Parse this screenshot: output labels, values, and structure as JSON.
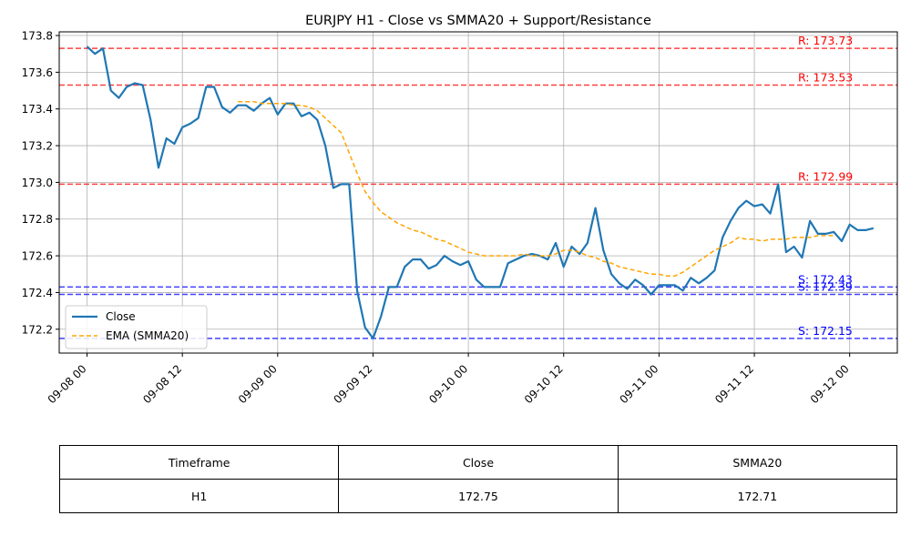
{
  "chart_data": {
    "type": "line",
    "title": "EURJPY H1 - Close vs SMMA20 + Support/Resistance",
    "xlabel": "",
    "ylabel": "",
    "ylim": [
      172.07,
      173.82
    ],
    "xlim": [
      "2025-09-07 20:30",
      "2025-09-12 06:00"
    ],
    "grid": true,
    "legend_location": "lower-left",
    "x_tick_labels": [
      "09-08 00",
      "09-08 12",
      "09-09 00",
      "09-09 12",
      "09-10 00",
      "09-10 12",
      "09-11 00",
      "09-11 12",
      "09-12 00"
    ],
    "y_tick_labels": [
      "172.2",
      "172.4",
      "172.6",
      "172.8",
      "173.0",
      "173.2",
      "173.4",
      "173.6",
      "173.8"
    ],
    "series": [
      {
        "name": "Close",
        "color": "#1f77b4",
        "style": "solid",
        "start": "2025-09-08 00:00",
        "step_hours": 1,
        "values": [
          173.74,
          173.7,
          173.73,
          173.5,
          173.46,
          173.52,
          173.54,
          173.53,
          173.34,
          173.08,
          173.24,
          173.21,
          173.3,
          173.32,
          173.35,
          173.52,
          173.52,
          173.41,
          173.38,
          173.42,
          173.42,
          173.39,
          173.43,
          173.46,
          173.37,
          173.43,
          173.43,
          173.36,
          173.38,
          173.34,
          173.2,
          172.97,
          172.99,
          172.99,
          172.41,
          172.21,
          172.15,
          172.27,
          172.43,
          172.43,
          172.54,
          172.58,
          172.58,
          172.53,
          172.55,
          172.6,
          172.57,
          172.55,
          172.57,
          172.47,
          172.43,
          172.43,
          172.43,
          172.56,
          172.58,
          172.6,
          172.61,
          172.6,
          172.58,
          172.67,
          172.54,
          172.65,
          172.61,
          172.67,
          172.86,
          172.63,
          172.5,
          172.45,
          172.42,
          172.47,
          172.44,
          172.39,
          172.44,
          172.44,
          172.44,
          172.41,
          172.48,
          172.45,
          172.48,
          172.52,
          172.7,
          172.79,
          172.86,
          172.9,
          172.87,
          172.88,
          172.83,
          172.99,
          172.62,
          172.65,
          172.59,
          172.79,
          172.72,
          172.72,
          172.73,
          172.68,
          172.77,
          172.74,
          172.74,
          172.75
        ]
      },
      {
        "name": "EMA (SMMA20)",
        "color": "#ffa500",
        "style": "dashed",
        "start": "2025-09-08 19:00",
        "step_hours": 1,
        "values": [
          173.44,
          173.44,
          173.44,
          173.43,
          173.43,
          173.43,
          173.43,
          173.42,
          173.42,
          173.41,
          173.39,
          173.35,
          173.31,
          173.27,
          173.16,
          173.05,
          172.95,
          172.89,
          172.84,
          172.81,
          172.78,
          172.76,
          172.74,
          172.73,
          172.71,
          172.69,
          172.68,
          172.66,
          172.64,
          172.62,
          172.61,
          172.6,
          172.6,
          172.6,
          172.6,
          172.6,
          172.61,
          172.6,
          172.6,
          172.6,
          172.61,
          172.63,
          172.63,
          172.62,
          172.6,
          172.59,
          172.57,
          172.56,
          172.54,
          172.53,
          172.52,
          172.51,
          172.5,
          172.5,
          172.49,
          172.49,
          172.51,
          172.54,
          172.57,
          172.6,
          172.63,
          172.65,
          172.67,
          172.7,
          172.69,
          172.69,
          172.68,
          172.69,
          172.69,
          172.69,
          172.7,
          172.7,
          172.7,
          172.71,
          172.71,
          172.71
        ]
      }
    ],
    "levels": [
      {
        "kind": "resistance",
        "value": 173.73,
        "label": "R: 173.73",
        "color": "#ff0000"
      },
      {
        "kind": "resistance",
        "value": 173.53,
        "label": "R: 173.53",
        "color": "#ff0000"
      },
      {
        "kind": "resistance",
        "value": 172.99,
        "label": "R: 172.99",
        "color": "#ff0000"
      },
      {
        "kind": "support",
        "value": 172.43,
        "label": "S: 172.43",
        "color": "#0000ff"
      },
      {
        "kind": "support",
        "value": 172.39,
        "label": "S: 172.39",
        "color": "#0000ff"
      },
      {
        "kind": "support",
        "value": 172.15,
        "label": "S: 172.15",
        "color": "#0000ff"
      }
    ]
  },
  "table": {
    "headers": [
      "Timeframe",
      "Close",
      "SMMA20"
    ],
    "row": [
      "H1",
      "172.75",
      "172.71"
    ]
  }
}
